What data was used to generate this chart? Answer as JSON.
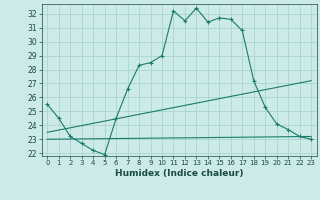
{
  "title": "",
  "xlabel": "Humidex (Indice chaleur)",
  "bg_color": "#cceae7",
  "grid_color": "#aad4d0",
  "line_color": "#1a7a6e",
  "xlim": [
    -0.5,
    23.5
  ],
  "ylim": [
    21.8,
    32.7
  ],
  "yticks": [
    22,
    23,
    24,
    25,
    26,
    27,
    28,
    29,
    30,
    31,
    32
  ],
  "xticks": [
    0,
    1,
    2,
    3,
    4,
    5,
    6,
    7,
    8,
    9,
    10,
    11,
    12,
    13,
    14,
    15,
    16,
    17,
    18,
    19,
    20,
    21,
    22,
    23
  ],
  "line1": {
    "x": [
      0,
      1,
      2,
      3,
      4,
      5,
      6,
      7,
      8,
      9,
      10,
      11,
      12,
      13,
      14,
      15,
      16,
      17,
      18,
      19,
      20,
      21,
      22,
      23
    ],
    "y": [
      25.5,
      24.5,
      23.2,
      22.7,
      22.2,
      21.9,
      24.5,
      26.6,
      28.3,
      28.5,
      29.0,
      32.2,
      31.5,
      32.4,
      31.4,
      31.7,
      31.6,
      30.8,
      27.2,
      25.3,
      24.1,
      23.7,
      23.2,
      23.0
    ]
  },
  "line2": {
    "x": [
      0,
      23
    ],
    "y": [
      23.5,
      27.2
    ]
  },
  "line3": {
    "x": [
      0,
      23
    ],
    "y": [
      23.0,
      23.2
    ]
  }
}
